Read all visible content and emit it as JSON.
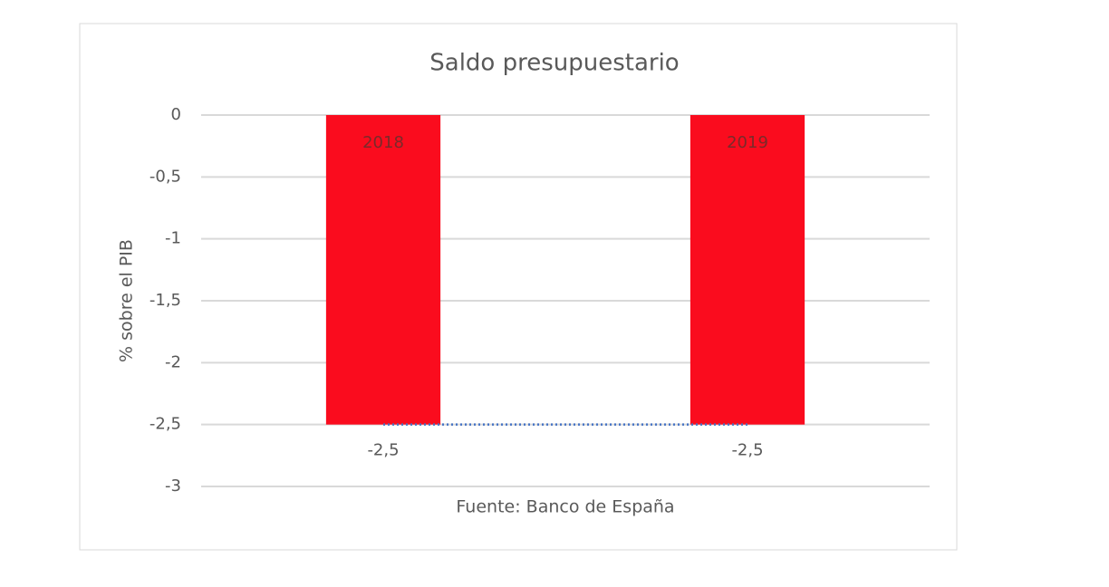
{
  "chart_data": {
    "type": "bar",
    "title": "Saldo presupuestario",
    "y_label": "% sobre el PIB",
    "x_label": "Fuente: Banco de España",
    "categories": [
      "2018",
      "2019"
    ],
    "values": [
      -2.5,
      -2.5
    ],
    "value_labels": [
      "-2,5",
      "-2,5"
    ],
    "color": "#fa0c1e",
    "line": {
      "values": [
        -2.5,
        -2.5
      ],
      "color": "#4472c4",
      "style": "dotted"
    },
    "ylim": [
      -3,
      0
    ],
    "yticks": [
      0,
      {
        "value": -0.5,
        "label": "-0,5"
      },
      -1,
      {
        "value": -1.5,
        "label": "-1,5"
      },
      -2,
      {
        "value": -2.5,
        "label": "-2,5"
      },
      -3
    ],
    "grid": true
  }
}
